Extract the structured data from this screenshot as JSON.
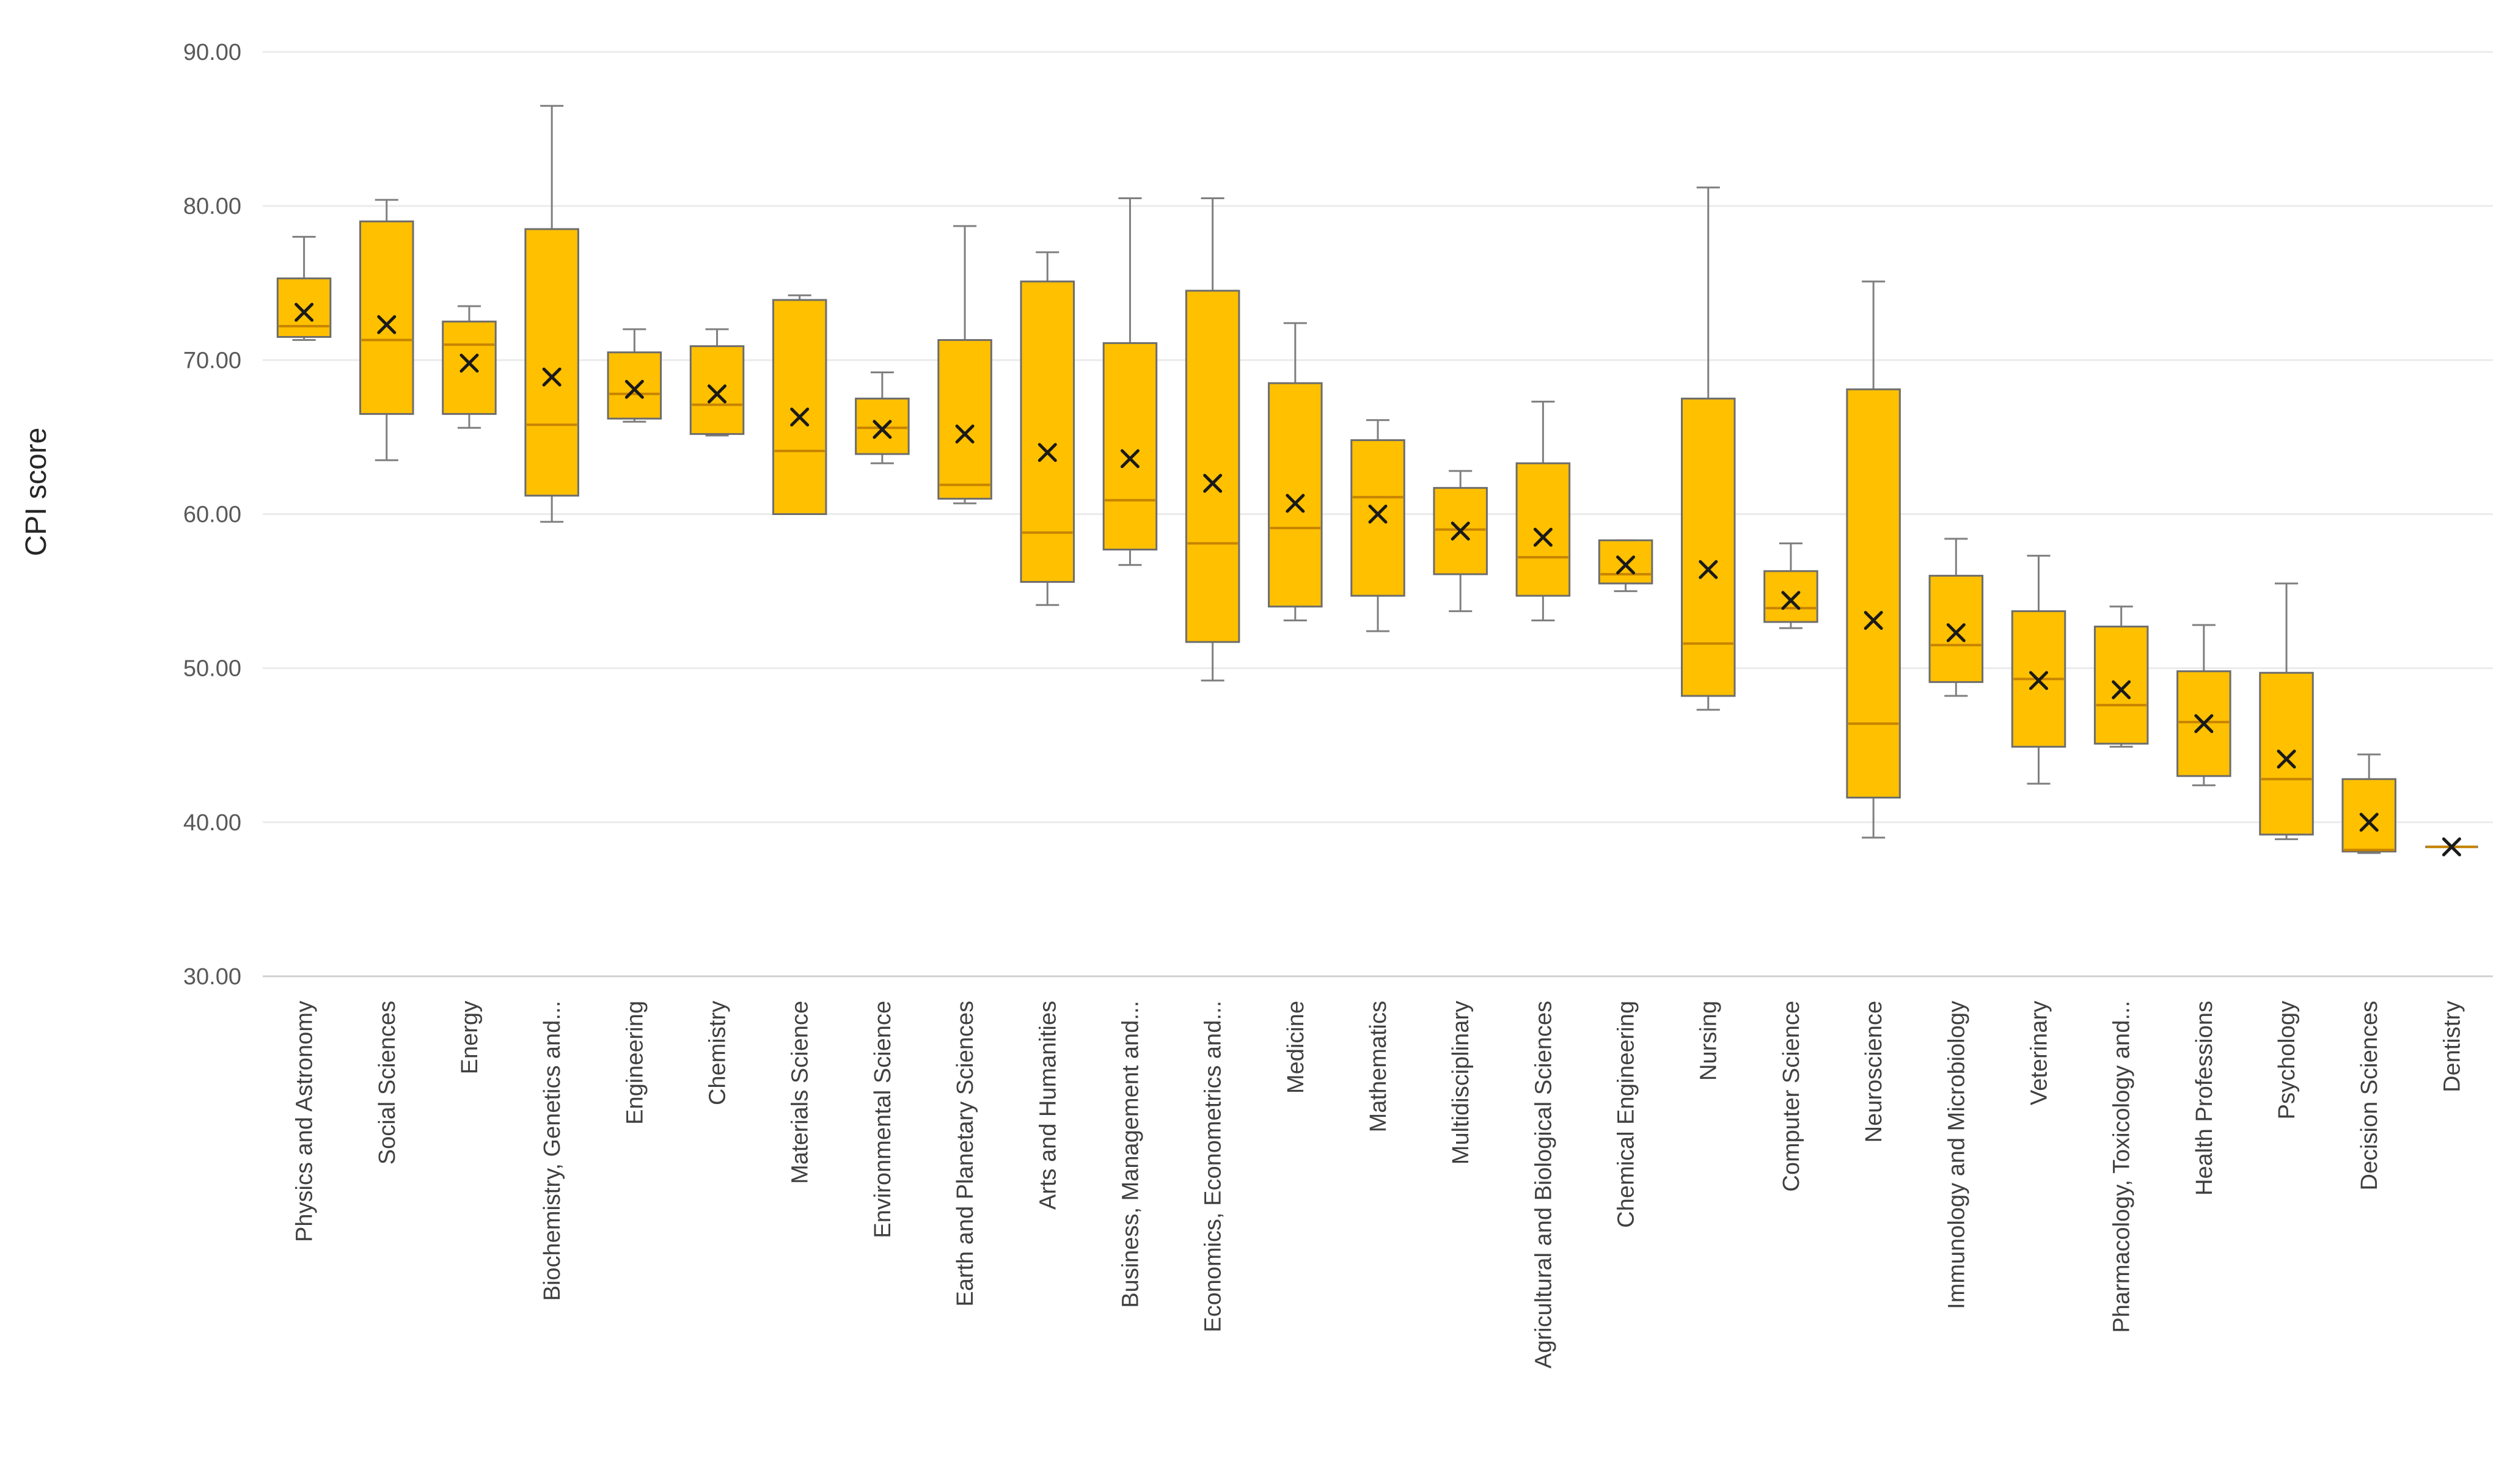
{
  "chart_data": {
    "type": "boxplot",
    "title": "",
    "xlabel": "",
    "ylabel": "CPI score",
    "ylim": [
      30,
      90
    ],
    "yticks": [
      "30.00",
      "40.00",
      "50.00",
      "60.00",
      "70.00",
      "80.00",
      "90.00"
    ],
    "ytick_values": [
      30,
      40,
      50,
      60,
      70,
      80,
      90
    ],
    "grid": true,
    "box_color": "#FFC000",
    "median_color": "#C68400",
    "whisker_color": "#7F7F7F",
    "mean_marker_color": "#1A1A1A",
    "categories": [
      {
        "name": "Physics and Astronomy",
        "min": 71.3,
        "q1": 71.5,
        "median": 72.2,
        "q3": 75.3,
        "max": 78.0,
        "mean": 73.1
      },
      {
        "name": "Social Sciences",
        "min": 63.5,
        "q1": 66.5,
        "median": 71.3,
        "q3": 79.0,
        "max": 80.4,
        "mean": 72.3
      },
      {
        "name": "Energy",
        "min": 65.6,
        "q1": 66.5,
        "median": 71.0,
        "q3": 72.5,
        "max": 73.5,
        "mean": 69.8
      },
      {
        "name": "Biochemistry, Genetics and...",
        "min": 59.5,
        "q1": 61.2,
        "median": 65.8,
        "q3": 78.5,
        "max": 86.5,
        "mean": 68.9
      },
      {
        "name": "Engineering",
        "min": 66.0,
        "q1": 66.2,
        "median": 67.8,
        "q3": 70.5,
        "max": 72.0,
        "mean": 68.1
      },
      {
        "name": "Chemistry",
        "min": 65.1,
        "q1": 65.2,
        "median": 67.1,
        "q3": 70.9,
        "max": 72.0,
        "mean": 67.8
      },
      {
        "name": "Materials Science",
        "min": 60.0,
        "q1": 60.0,
        "median": 64.1,
        "q3": 73.9,
        "max": 74.2,
        "mean": 66.3
      },
      {
        "name": "Environmental Science",
        "min": 63.3,
        "q1": 63.9,
        "median": 65.6,
        "q3": 67.5,
        "max": 69.2,
        "mean": 65.5
      },
      {
        "name": "Earth and Planetary Sciences",
        "min": 60.7,
        "q1": 61.0,
        "median": 61.9,
        "q3": 71.3,
        "max": 78.7,
        "mean": 65.2
      },
      {
        "name": "Arts and Humanities",
        "min": 54.1,
        "q1": 55.6,
        "median": 58.8,
        "q3": 75.1,
        "max": 77.0,
        "mean": 64.0
      },
      {
        "name": "Business, Management and...",
        "min": 56.7,
        "q1": 57.7,
        "median": 60.9,
        "q3": 71.1,
        "max": 80.5,
        "mean": 63.6
      },
      {
        "name": "Economics, Econometrics and...",
        "min": 49.2,
        "q1": 51.7,
        "median": 58.1,
        "q3": 74.5,
        "max": 80.5,
        "mean": 62.0
      },
      {
        "name": "Medicine",
        "min": 53.1,
        "q1": 54.0,
        "median": 59.1,
        "q3": 68.5,
        "max": 72.4,
        "mean": 60.7
      },
      {
        "name": "Mathematics",
        "min": 52.4,
        "q1": 54.7,
        "median": 61.1,
        "q3": 64.8,
        "max": 66.1,
        "mean": 60.0
      },
      {
        "name": "Multidisciplinary",
        "min": 53.7,
        "q1": 56.1,
        "median": 59.0,
        "q3": 61.7,
        "max": 62.8,
        "mean": 58.9
      },
      {
        "name": "Agricultural and Biological Sciences",
        "min": 53.1,
        "q1": 54.7,
        "median": 57.2,
        "q3": 63.3,
        "max": 67.3,
        "mean": 58.5
      },
      {
        "name": "Chemical Engineering",
        "min": 55.0,
        "q1": 55.5,
        "median": 56.1,
        "q3": 58.3,
        "max": 58.3,
        "mean": 56.7
      },
      {
        "name": "Nursing",
        "min": 47.3,
        "q1": 48.2,
        "median": 51.6,
        "q3": 67.5,
        "max": 81.2,
        "mean": 56.4
      },
      {
        "name": "Computer Science",
        "min": 52.6,
        "q1": 53.0,
        "median": 53.9,
        "q3": 56.3,
        "max": 58.1,
        "mean": 54.4
      },
      {
        "name": "Neuroscience",
        "min": 39.0,
        "q1": 41.6,
        "median": 46.4,
        "q3": 68.1,
        "max": 75.1,
        "mean": 53.1
      },
      {
        "name": "Immunology and Microbiology",
        "min": 48.2,
        "q1": 49.1,
        "median": 51.5,
        "q3": 56.0,
        "max": 58.4,
        "mean": 52.3
      },
      {
        "name": "Veterinary",
        "min": 42.5,
        "q1": 44.9,
        "median": 49.3,
        "q3": 53.7,
        "max": 57.3,
        "mean": 49.2
      },
      {
        "name": "Pharmacology, Toxicology and...",
        "min": 44.9,
        "q1": 45.1,
        "median": 47.6,
        "q3": 52.7,
        "max": 54.0,
        "mean": 48.6
      },
      {
        "name": "Health Professions",
        "min": 42.4,
        "q1": 43.0,
        "median": 46.5,
        "q3": 49.8,
        "max": 52.8,
        "mean": 46.4
      },
      {
        "name": "Psychology",
        "min": 38.9,
        "q1": 39.2,
        "median": 42.8,
        "q3": 49.7,
        "max": 55.5,
        "mean": 44.1
      },
      {
        "name": "Decision Sciences",
        "min": 38.0,
        "q1": 38.1,
        "median": 38.2,
        "q3": 42.8,
        "max": 44.4,
        "mean": 40.0
      },
      {
        "name": "Dentistry",
        "min": 38.4,
        "q1": 38.4,
        "median": 38.4,
        "q3": 38.4,
        "max": 38.4,
        "mean": 38.4
      }
    ]
  }
}
